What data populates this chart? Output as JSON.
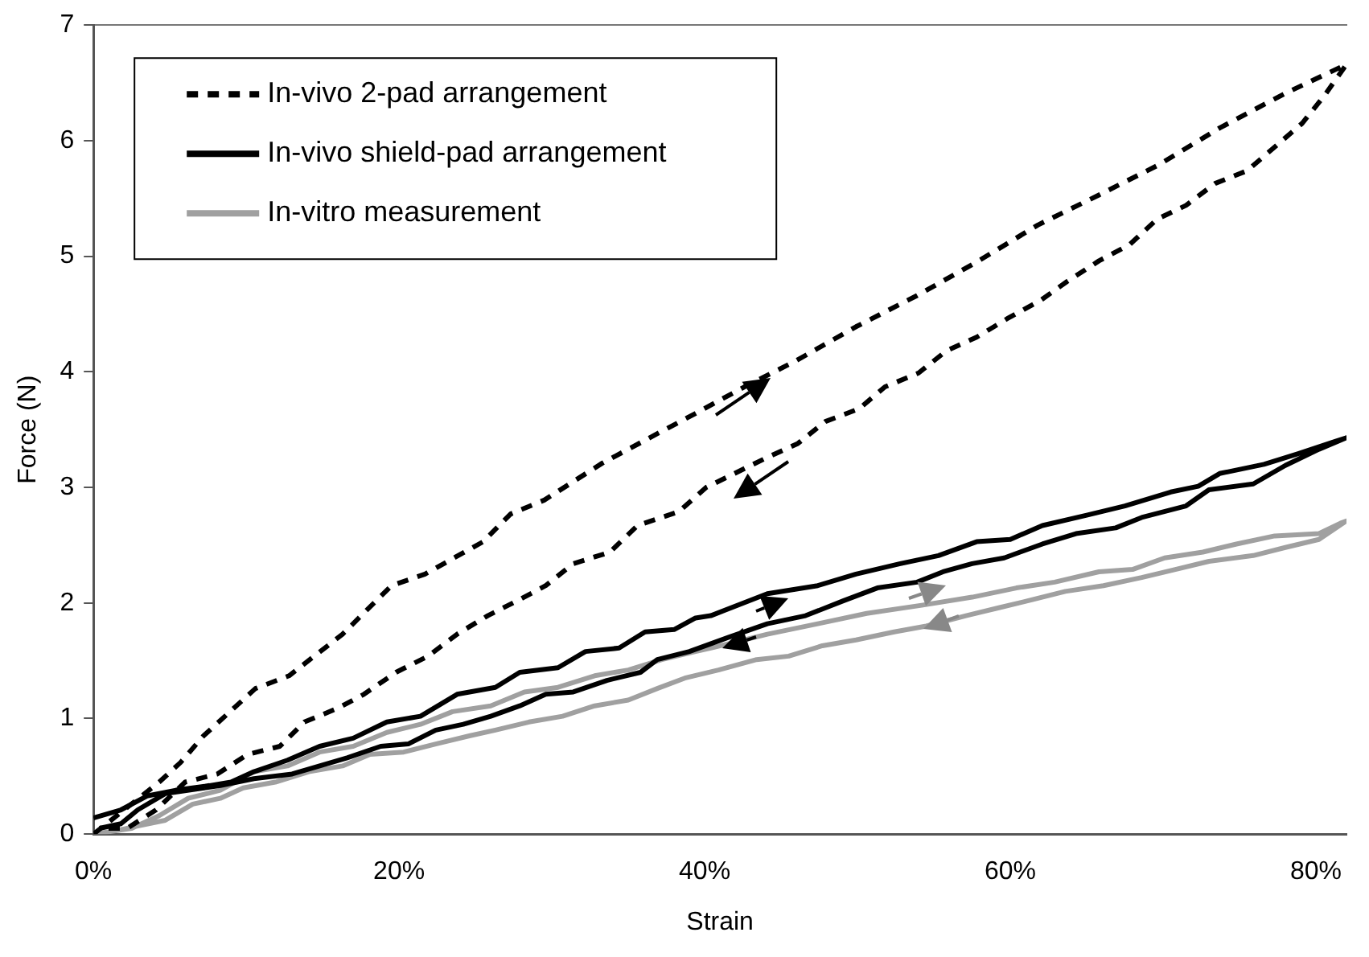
{
  "chart_data": {
    "type": "line",
    "xlabel": "Strain",
    "ylabel": "Force (N)",
    "xlim": [
      0,
      82
    ],
    "ylim": [
      0,
      7
    ],
    "xticks": [
      {
        "value": 0,
        "label": "0%"
      },
      {
        "value": 20,
        "label": "20%"
      },
      {
        "value": 40,
        "label": "40%"
      },
      {
        "value": 60,
        "label": "60%"
      },
      {
        "value": 80,
        "label": "80%"
      }
    ],
    "yticks": [
      0,
      1,
      2,
      3,
      4,
      5,
      6,
      7
    ],
    "grid": false,
    "legend": "top left",
    "marker": "none",
    "series": [
      {
        "name": "In-vivo 2-pad arrangement",
        "color": "#000000",
        "line_style": "dashed",
        "x": [
          0,
          4.3,
          5.7,
          7.2,
          10.6,
          12.8,
          16.3,
          19.5,
          21.7,
          25.5,
          27.3,
          29.5,
          33.3,
          37.4,
          39.4,
          42.6,
          45.9,
          49.9,
          53.9,
          57.8,
          61.8,
          65.8,
          69.7,
          73.7,
          78.0,
          82,
          80.5,
          79.1,
          75.5,
          73.4,
          71.5,
          69.6,
          67.8,
          65.8,
          63.7,
          62.0,
          59.8,
          57.8,
          55.8,
          54.0,
          51.8,
          50.1,
          47.9,
          46.1,
          44.1,
          40.1,
          38.3,
          35.6,
          33.8,
          31.4,
          29.6,
          27.9,
          25.8,
          23.8,
          21.9,
          19.8,
          17.7,
          16.0,
          13.8,
          12.2,
          10.1,
          8.1,
          6.0,
          4.1,
          2.2,
          0.4
        ],
        "values": [
          0,
          0.45,
          0.62,
          0.85,
          1.26,
          1.37,
          1.73,
          2.15,
          2.25,
          2.53,
          2.77,
          2.89,
          3.21,
          3.5,
          3.64,
          3.87,
          4.09,
          4.39,
          4.66,
          4.95,
          5.27,
          5.53,
          5.79,
          6.11,
          6.41,
          6.66,
          6.38,
          6.15,
          5.74,
          5.63,
          5.44,
          5.32,
          5.1,
          4.96,
          4.78,
          4.62,
          4.46,
          4.3,
          4.18,
          3.99,
          3.87,
          3.68,
          3.57,
          3.38,
          3.26,
          3.0,
          2.79,
          2.67,
          2.44,
          2.34,
          2.15,
          2.03,
          1.89,
          1.73,
          1.54,
          1.4,
          1.21,
          1.09,
          0.97,
          0.76,
          0.69,
          0.52,
          0.45,
          0.21,
          0.05,
          0.05
        ]
      },
      {
        "name": "In-vivo shield-pad arrangement",
        "color": "#000000",
        "line_style": "solid",
        "x": [
          0,
          1.8,
          3.5,
          5.4,
          7.6,
          9.0,
          10.5,
          12.7,
          14.8,
          17.0,
          19.2,
          21.4,
          23.8,
          26.3,
          27.9,
          30.4,
          32.2,
          34.4,
          36.1,
          38.0,
          39.4,
          40.4,
          44.1,
          47.4,
          49.9,
          52.8,
          55.3,
          57.8,
          60.0,
          62.1,
          65.0,
          67.5,
          70.5,
          72.3,
          73.7,
          76.6,
          78.8,
          81.3,
          82,
          80.2,
          78.0,
          75.9,
          73.0,
          71.5,
          68.6,
          66.9,
          64.3,
          62.1,
          59.6,
          57.5,
          55.6,
          53.9,
          51.3,
          49.1,
          46.6,
          44.1,
          41.5,
          39.0,
          36.9,
          35.8,
          33.6,
          31.4,
          29.6,
          27.9,
          26.0,
          24.2,
          22.4,
          20.6,
          18.8,
          16.6,
          14.8,
          13.0,
          10.5,
          8.3,
          4.7,
          2.9,
          1.8,
          0.4
        ],
        "values": [
          0.14,
          0.21,
          0.33,
          0.38,
          0.42,
          0.45,
          0.54,
          0.64,
          0.76,
          0.83,
          0.97,
          1.02,
          1.21,
          1.27,
          1.4,
          1.44,
          1.58,
          1.61,
          1.75,
          1.77,
          1.87,
          1.89,
          2.08,
          2.15,
          2.25,
          2.34,
          2.41,
          2.53,
          2.55,
          2.67,
          2.76,
          2.84,
          2.96,
          3.01,
          3.12,
          3.2,
          3.29,
          3.4,
          3.43,
          3.33,
          3.19,
          3.03,
          2.98,
          2.84,
          2.74,
          2.65,
          2.6,
          2.51,
          2.39,
          2.34,
          2.27,
          2.18,
          2.13,
          2.02,
          1.89,
          1.82,
          1.7,
          1.58,
          1.51,
          1.4,
          1.33,
          1.23,
          1.21,
          1.11,
          1.02,
          0.95,
          0.9,
          0.78,
          0.76,
          0.66,
          0.59,
          0.52,
          0.48,
          0.42,
          0.35,
          0.21,
          0.09,
          0.05
        ]
      },
      {
        "name": "In-vitro measurement",
        "color": "#a0a0a0",
        "line_style": "solid",
        "x": [
          0,
          2.5,
          4.3,
          6.2,
          8.3,
          10.5,
          12.7,
          14.8,
          17.0,
          19.2,
          21.4,
          23.5,
          26.0,
          28.2,
          30.4,
          32.8,
          35.0,
          37.2,
          39.4,
          40.4,
          44.1,
          47.4,
          50.6,
          54.2,
          57.5,
          60.4,
          62.9,
          65.8,
          68.0,
          70.1,
          72.6,
          74.8,
          77.3,
          80.2,
          81.6,
          82,
          80.2,
          78.0,
          75.9,
          73.0,
          70.8,
          68.6,
          66.1,
          63.6,
          61.5,
          59.3,
          57.1,
          54.5,
          52.4,
          49.9,
          47.7,
          45.5,
          43.4,
          40.9,
          38.7,
          36.9,
          35.0,
          32.8,
          30.7,
          28.5,
          26.3,
          24.6,
          22.4,
          20.3,
          18.1,
          16.3,
          14.1,
          11.9,
          9.8,
          8.3,
          6.5,
          4.7,
          2.9,
          1.1
        ],
        "values": [
          0,
          0.05,
          0.16,
          0.31,
          0.38,
          0.54,
          0.59,
          0.71,
          0.76,
          0.88,
          0.95,
          1.06,
          1.11,
          1.23,
          1.27,
          1.37,
          1.42,
          1.51,
          1.58,
          1.61,
          1.73,
          1.82,
          1.91,
          1.98,
          2.05,
          2.13,
          2.18,
          2.27,
          2.29,
          2.39,
          2.44,
          2.51,
          2.58,
          2.6,
          2.69,
          2.71,
          2.55,
          2.48,
          2.41,
          2.36,
          2.29,
          2.22,
          2.15,
          2.1,
          2.03,
          1.96,
          1.89,
          1.8,
          1.75,
          1.68,
          1.63,
          1.54,
          1.51,
          1.42,
          1.35,
          1.26,
          1.16,
          1.11,
          1.02,
          0.97,
          0.9,
          0.85,
          0.78,
          0.71,
          0.69,
          0.59,
          0.54,
          0.45,
          0.4,
          0.31,
          0.26,
          0.12,
          0.07,
          0.02
        ]
      }
    ]
  }
}
